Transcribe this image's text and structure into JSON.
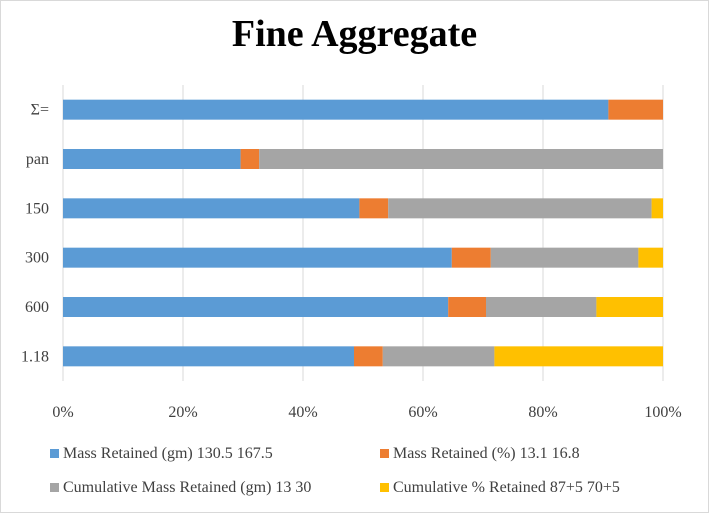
{
  "chart_data": {
    "type": "bar",
    "orientation": "horizontal",
    "stacked": "percent",
    "title": "Fine Aggregate",
    "xlabel": "",
    "ylabel": "",
    "categories": [
      "1.18",
      "600",
      "300",
      "150",
      "pan",
      "Σ="
    ],
    "xlim": [
      0,
      100
    ],
    "x_ticks": [
      "0%",
      "20%",
      "40%",
      "60%",
      "80%",
      "100%"
    ],
    "grid": "vertical",
    "legend_position": "bottom",
    "series": [
      {
        "name": "Mass Retained (gm) 130.5 167.5",
        "color": "#5B9BD5",
        "values": [
          48.5,
          64.2,
          64.8,
          49.4,
          29.6,
          90.9
        ]
      },
      {
        "name": "Mass Retained (%) 13.1 16.8",
        "color": "#ED7D31",
        "values": [
          4.8,
          6.3,
          6.5,
          4.8,
          3.1,
          9.1
        ]
      },
      {
        "name": "Cumulative Mass Retained (gm) 13 30",
        "color": "#A5A5A5",
        "values": [
          18.6,
          18.4,
          24.6,
          43.9,
          67.3,
          0
        ]
      },
      {
        "name": "Cumulative % Retained 87+5 70+5",
        "color": "#FFC000",
        "values": [
          28.1,
          11.1,
          4.1,
          1.9,
          0,
          0
        ]
      }
    ]
  }
}
